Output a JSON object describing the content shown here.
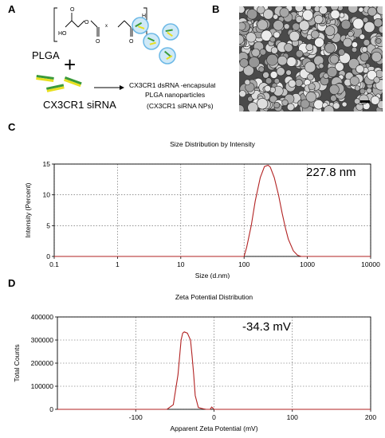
{
  "panels": {
    "a": "A",
    "b": "B",
    "c": "C",
    "d": "D"
  },
  "schematic": {
    "polymer_label": "PLGA",
    "plus": "+",
    "sirna_label": "CX3CR1 siRNA",
    "product_line1": "CX3CR1 dsRNA -encapsulated",
    "product_line2": "PLGA  nanoparticles",
    "product_line3": "(CX3CR1 siRNA NPs)",
    "formula": {
      "ho": "HO",
      "o1": "O",
      "o2": "O",
      "o3": "O",
      "o4": "O",
      "h": "H",
      "x": "x",
      "y": "y"
    }
  },
  "chart_data": [
    {
      "type": "line",
      "title": "Size Distribution by Intensity",
      "xlabel": "Size (d.nm)",
      "ylabel": "Intensity (Percent)",
      "xscale": "log",
      "xlim": [
        0.1,
        10000
      ],
      "ylim": [
        0,
        15
      ],
      "xticks": [
        "0.1",
        "1",
        "10",
        "100",
        "1000",
        "10000"
      ],
      "yticks": [
        "0",
        "5",
        "10",
        "15"
      ],
      "annotation": "227.8 nm",
      "grid": true,
      "series": [
        {
          "x": [
            0.1,
            100,
            110,
            130,
            150,
            180,
            210,
            240,
            260,
            300,
            350,
            400,
            450,
            500,
            600,
            700,
            800,
            10000
          ],
          "y": [
            0,
            0,
            1.5,
            5,
            9,
            12.8,
            14.6,
            14.8,
            14.5,
            12.8,
            10.0,
            7.0,
            4.6,
            2.8,
            0.9,
            0.2,
            0,
            0
          ]
        }
      ]
    },
    {
      "type": "line",
      "title": "Zeta Potential Distribution",
      "xlabel": "Apparent Zeta Potential (mV)",
      "ylabel": "Total Counts",
      "xlim": [
        -200,
        200
      ],
      "ylim": [
        0,
        400000
      ],
      "xticks": [
        "-100",
        "0",
        "100",
        "200"
      ],
      "yticks": [
        "0",
        "100000",
        "200000",
        "300000",
        "400000"
      ],
      "annotation": "-34.3 mV",
      "grid": true,
      "series": [
        {
          "x": [
            -200,
            -60,
            -52,
            -46,
            -42,
            -40,
            -38,
            -34,
            -30,
            -28,
            -26,
            -24,
            -20,
            -15,
            -10,
            -5,
            -3,
            0,
            200
          ],
          "y": [
            0,
            0,
            20000,
            150000,
            300000,
            330000,
            335000,
            330000,
            300000,
            230000,
            150000,
            60000,
            8000,
            3000,
            0,
            0,
            10000,
            0,
            0
          ]
        }
      ]
    }
  ]
}
